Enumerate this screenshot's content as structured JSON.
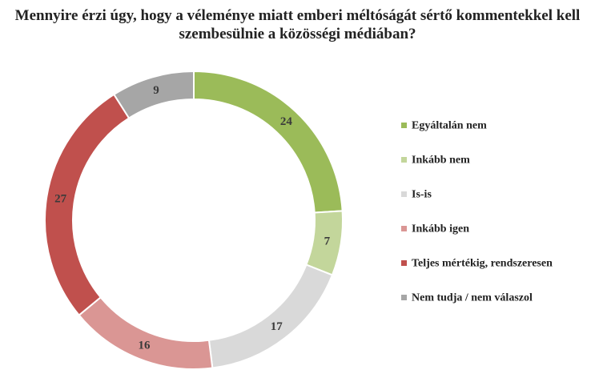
{
  "chart_data": {
    "type": "pie",
    "title": "Mennyire érzi úgy, hogy a véleménye miatt emberi méltóságát sértő kommentekkel kell szembesülnie a közösségi médiában?",
    "donut": true,
    "legend_position": "right",
    "slices": [
      {
        "label": "Egyáltalán nem",
        "value": 24,
        "color": "#9bbb59"
      },
      {
        "label": "Inkább nem",
        "value": 7,
        "color": "#c3d69b"
      },
      {
        "label": "Is-is",
        "value": 17,
        "color": "#d9d9d9"
      },
      {
        "label": "Inkább igen",
        "value": 16,
        "color": "#da9694"
      },
      {
        "label": "Teljes mértékig, rendszeresen",
        "value": 27,
        "color": "#c0504d"
      },
      {
        "label": "Nem tudja / nem válaszol",
        "value": 9,
        "color": "#a6a6a6"
      }
    ]
  }
}
